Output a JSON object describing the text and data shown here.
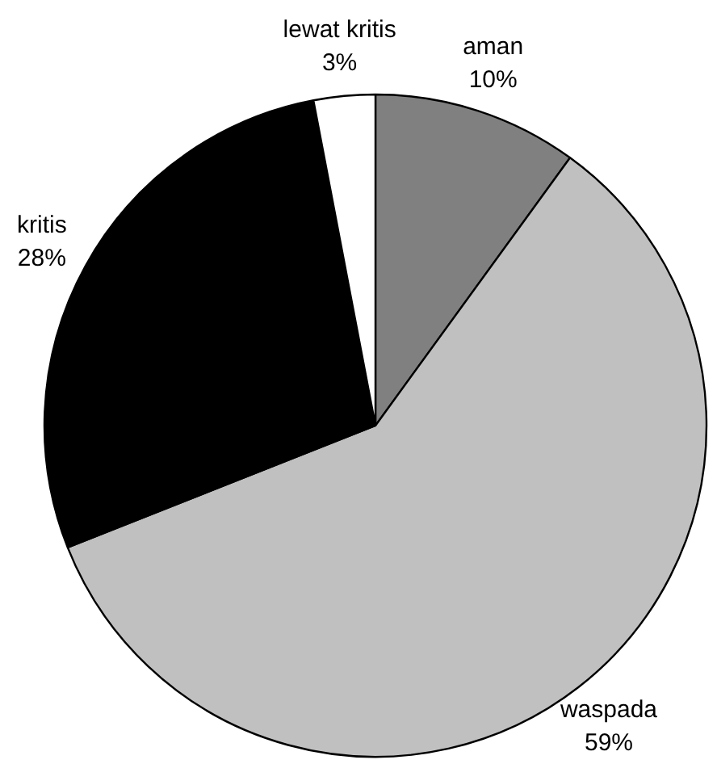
{
  "chart_data": {
    "type": "pie",
    "categories": [
      "aman",
      "waspada",
      "kritis",
      "lewat kritis"
    ],
    "values": [
      10,
      59,
      28,
      3
    ],
    "value_labels": [
      "10%",
      "59%",
      "28%",
      "3%"
    ],
    "colors": [
      "#808080",
      "#c0c0c0",
      "#000000",
      "#ffffff"
    ]
  }
}
